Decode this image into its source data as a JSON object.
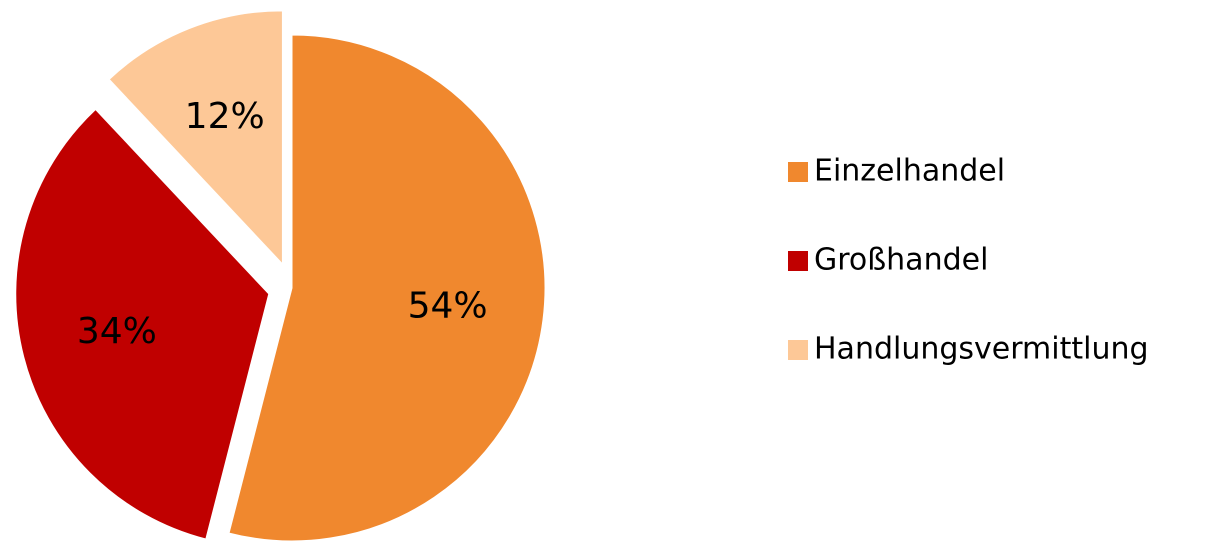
{
  "chart_data": {
    "type": "pie",
    "categories": [
      "Einzelhandel",
      "Großhandel",
      "Handlungsvermittlung"
    ],
    "values": [
      54,
      34,
      12
    ],
    "value_labels": [
      "54%",
      "34%",
      "12%"
    ],
    "colors": [
      "#f0882e",
      "#c00000",
      "#fdc897"
    ],
    "legend": "right"
  }
}
